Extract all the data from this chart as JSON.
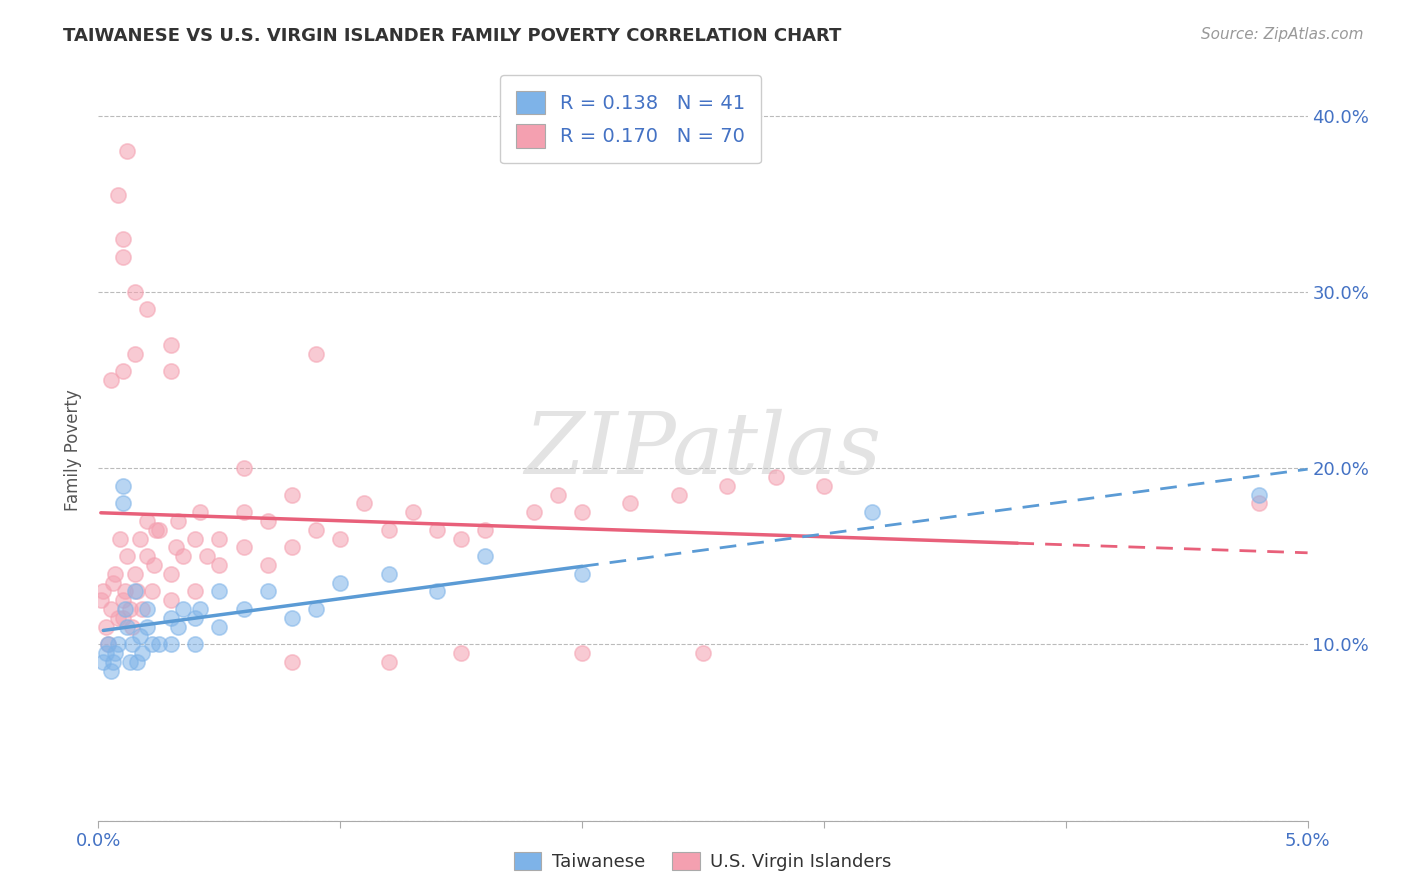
{
  "title": "TAIWANESE VS U.S. VIRGIN ISLANDER FAMILY POVERTY CORRELATION CHART",
  "source_text": "Source: ZipAtlas.com",
  "ylabel": "Family Poverty",
  "xlim": [
    0.0,
    0.05
  ],
  "ylim": [
    0.0,
    0.42
  ],
  "xtick_positions": [
    0.0,
    0.01,
    0.02,
    0.03,
    0.04,
    0.05
  ],
  "xtick_labels": [
    "0.0%",
    "",
    "",
    "",
    "",
    "5.0%"
  ],
  "ytick_positions": [
    0.0,
    0.1,
    0.2,
    0.3,
    0.4
  ],
  "ytick_labels_right": [
    "",
    "10.0%",
    "20.0%",
    "30.0%",
    "40.0%"
  ],
  "r_taiwanese": 0.138,
  "n_taiwanese": 41,
  "r_virgin": 0.17,
  "n_virgin": 70,
  "color_taiwanese": "#7EB3E8",
  "color_virgin": "#F4A0B0",
  "color_trend_taiwanese": "#5B9BD5",
  "color_trend_virgin": "#E8607A",
  "watermark_text": "ZIPatlas",
  "tw_x": [
    0.0002,
    0.0003,
    0.0004,
    0.0005,
    0.0006,
    0.0007,
    0.0008,
    0.001,
    0.001,
    0.0011,
    0.0012,
    0.0013,
    0.0014,
    0.0015,
    0.0016,
    0.0017,
    0.0018,
    0.002,
    0.002,
    0.0022,
    0.0025,
    0.003,
    0.003,
    0.0033,
    0.0035,
    0.004,
    0.004,
    0.0042,
    0.005,
    0.005,
    0.006,
    0.007,
    0.008,
    0.009,
    0.01,
    0.012,
    0.014,
    0.016,
    0.02,
    0.032,
    0.048
  ],
  "tw_y": [
    0.09,
    0.095,
    0.1,
    0.085,
    0.09,
    0.095,
    0.1,
    0.18,
    0.19,
    0.12,
    0.11,
    0.09,
    0.1,
    0.13,
    0.09,
    0.105,
    0.095,
    0.11,
    0.12,
    0.1,
    0.1,
    0.115,
    0.1,
    0.11,
    0.12,
    0.1,
    0.115,
    0.12,
    0.13,
    0.11,
    0.12,
    0.13,
    0.115,
    0.12,
    0.135,
    0.14,
    0.13,
    0.15,
    0.14,
    0.175,
    0.185
  ],
  "vi_x": [
    0.0001,
    0.0002,
    0.0003,
    0.0004,
    0.0005,
    0.0006,
    0.0007,
    0.0008,
    0.0009,
    0.001,
    0.001,
    0.0011,
    0.0012,
    0.0013,
    0.0014,
    0.0015,
    0.0016,
    0.0017,
    0.0018,
    0.002,
    0.002,
    0.0022,
    0.0023,
    0.0024,
    0.0025,
    0.003,
    0.003,
    0.0032,
    0.0033,
    0.0035,
    0.004,
    0.004,
    0.0042,
    0.0045,
    0.005,
    0.005,
    0.006,
    0.006,
    0.007,
    0.007,
    0.008,
    0.008,
    0.009,
    0.01,
    0.011,
    0.012,
    0.013,
    0.014,
    0.015,
    0.016,
    0.018,
    0.019,
    0.02,
    0.022,
    0.024,
    0.026,
    0.028,
    0.03,
    0.003,
    0.001,
    0.0005,
    0.015,
    0.02,
    0.012,
    0.008,
    0.025,
    0.009,
    0.006,
    0.048,
    0.001
  ],
  "vi_y": [
    0.125,
    0.13,
    0.11,
    0.1,
    0.12,
    0.135,
    0.14,
    0.115,
    0.16,
    0.115,
    0.125,
    0.13,
    0.15,
    0.12,
    0.11,
    0.14,
    0.13,
    0.16,
    0.12,
    0.15,
    0.17,
    0.13,
    0.145,
    0.165,
    0.165,
    0.125,
    0.14,
    0.155,
    0.17,
    0.15,
    0.13,
    0.16,
    0.175,
    0.15,
    0.145,
    0.16,
    0.155,
    0.175,
    0.145,
    0.17,
    0.155,
    0.185,
    0.165,
    0.16,
    0.18,
    0.165,
    0.175,
    0.165,
    0.16,
    0.165,
    0.175,
    0.185,
    0.175,
    0.18,
    0.185,
    0.19,
    0.195,
    0.19,
    0.27,
    0.255,
    0.25,
    0.095,
    0.095,
    0.09,
    0.09,
    0.095,
    0.265,
    0.2,
    0.18,
    0.33
  ],
  "vi_x_extra": [
    0.0008,
    0.001,
    0.0015,
    0.002,
    0.0015,
    0.0012,
    0.003
  ],
  "vi_y_extra": [
    0.355,
    0.32,
    0.3,
    0.29,
    0.265,
    0.38,
    0.255
  ]
}
